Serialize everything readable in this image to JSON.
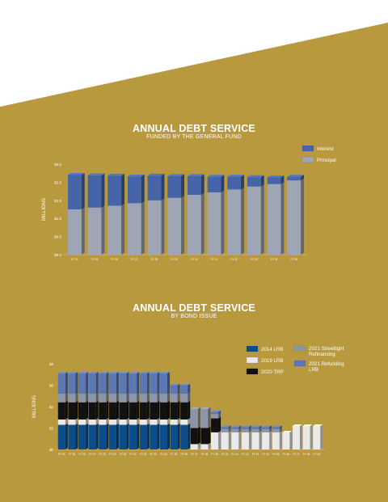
{
  "palette": {
    "background_gold": "#b9993d",
    "white_band": "#ffffff",
    "interest": "#4565a8",
    "principal": "#9ea6b5",
    "lrb2014": "#0b4c8a",
    "lrb2019": "#e9e9e9",
    "trp2020": "#111111",
    "streetlight2021": "#8d96a8",
    "refunding2021": "#5b78b5"
  },
  "chart_data": [
    {
      "type": "bar",
      "stacked": true,
      "title": "ANNUAL DEBT SERVICE",
      "subtitle": "FUNDED BY THE GENERAL FUND",
      "ylabel": "MILLIONS",
      "ylim": [
        0,
        2.5
      ],
      "yticks": [
        "$0.0",
        "$0.5",
        "$1.0",
        "$1.5",
        "$2.0",
        "$2.5"
      ],
      "grid": false,
      "legend_position": "top-right",
      "categories": [
        "FY 24",
        "FY 25",
        "FY 26",
        "FY 27",
        "FY 28",
        "FY 29",
        "FY 30",
        "FY 31",
        "FY 32",
        "FY 33",
        "FY 34",
        "FY 35"
      ],
      "series": [
        {
          "name": "Principal",
          "color_key": "principal",
          "values": [
            1.25,
            1.3,
            1.35,
            1.42,
            1.5,
            1.57,
            1.65,
            1.72,
            1.8,
            1.88,
            1.95,
            2.05
          ]
        },
        {
          "name": "Interest",
          "color_key": "interest",
          "values": [
            0.95,
            0.89,
            0.83,
            0.74,
            0.68,
            0.6,
            0.52,
            0.43,
            0.35,
            0.26,
            0.18,
            0.1
          ]
        }
      ]
    },
    {
      "type": "bar",
      "stacked": true,
      "title": "ANNUAL DEBT SERVICE",
      "subtitle": "BY BOND ISSUE",
      "ylabel": "MILLIONS",
      "ylim": [
        0,
        8
      ],
      "yticks": [
        "$0",
        "$2",
        "$4",
        "$6",
        "$8"
      ],
      "grid": false,
      "legend_position": "top-right",
      "categories": [
        "FY 24",
        "FY 25",
        "FY 26",
        "FY 27",
        "FY 28",
        "FY 29",
        "FY 30",
        "FY 31",
        "FY 32",
        "FY 33",
        "FY 34",
        "FY 35",
        "FY 36",
        "FY 37",
        "FY 38",
        "FY 39",
        "FY 40",
        "FY 41",
        "FY 42",
        "FY 43",
        "FY 44",
        "FY 45",
        "FY 46",
        "FY 47",
        "FY 48",
        "FY 49"
      ],
      "series": [
        {
          "name": "2014 LRB",
          "color_key": "lrb2014",
          "values": [
            2.3,
            2.3,
            2.3,
            2.3,
            2.3,
            2.3,
            2.3,
            2.3,
            2.3,
            2.3,
            2.3,
            2.3,
            2.3,
            0,
            0,
            0,
            0,
            0,
            0,
            0,
            0,
            0,
            0,
            0,
            0,
            0
          ]
        },
        {
          "name": "2019 LRB",
          "color_key": "lrb2019",
          "values": [
            0.5,
            0.5,
            0.5,
            0.5,
            0.5,
            0.5,
            0.5,
            0.5,
            0.5,
            0.5,
            0.5,
            0.5,
            0.5,
            0.5,
            0.5,
            1.6,
            1.6,
            1.6,
            1.6,
            1.6,
            1.6,
            1.6,
            1.6,
            2.2,
            2.2,
            2.2
          ]
        },
        {
          "name": "2020 TRP",
          "color_key": "trp2020",
          "values": [
            1.6,
            1.6,
            1.6,
            1.6,
            1.6,
            1.6,
            1.6,
            1.6,
            1.6,
            1.6,
            1.6,
            1.6,
            1.6,
            1.5,
            1.5,
            1.3,
            0,
            0,
            0,
            0,
            0,
            0,
            0,
            0,
            0,
            0
          ]
        },
        {
          "name": "2021 Streetlight Refinancing",
          "color_key": "streetlight2021",
          "values": [
            0.8,
            0.8,
            0.8,
            0.8,
            0.8,
            0.8,
            0.8,
            0.8,
            0.8,
            0.8,
            0.8,
            0.8,
            0.8,
            1.8,
            1.8,
            0.4,
            0.3,
            0.3,
            0.3,
            0.3,
            0.3,
            0.3,
            0,
            0,
            0,
            0
          ]
        },
        {
          "name": "2021 Refunding LRB",
          "color_key": "refunding2021",
          "values": [
            1.9,
            1.9,
            1.9,
            1.9,
            1.9,
            1.9,
            1.9,
            1.9,
            1.9,
            1.9,
            1.9,
            0.8,
            0.8,
            0,
            0,
            0.2,
            0.2,
            0.2,
            0.2,
            0.2,
            0.2,
            0.2,
            0,
            0,
            0,
            0
          ]
        }
      ]
    }
  ]
}
